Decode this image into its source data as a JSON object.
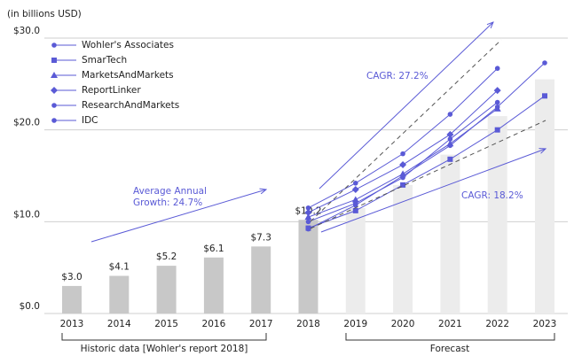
{
  "chart_data": {
    "type": "bar",
    "y_axis_label": "(in billions USD)",
    "categories": [
      "2013",
      "2014",
      "2015",
      "2016",
      "2017",
      "2018",
      "2019",
      "2020",
      "2021",
      "2022",
      "2023"
    ],
    "values": [
      3.0,
      4.1,
      5.2,
      6.1,
      7.3,
      10.2,
      11.5,
      14.0,
      17.3,
      21.5,
      25.5
    ],
    "value_labels": [
      "$3.0",
      "$4.1",
      "$5.2",
      "$6.1",
      "$7.3",
      "$10.2",
      null,
      null,
      null,
      null,
      null
    ],
    "bar_colors": [
      "#c8c8c8",
      "#c8c8c8",
      "#c8c8c8",
      "#c8c8c8",
      "#c8c8c8",
      "#c8c8c8",
      "#ececec",
      "#ececec",
      "#ececec",
      "#ececec",
      "#ececec"
    ],
    "ylim": [
      0,
      30
    ],
    "yticks": [
      {
        "value": 0,
        "label": "$0.0"
      },
      {
        "value": 10,
        "label": "$10.0"
      },
      {
        "value": 20,
        "label": "$20.0"
      },
      {
        "value": 30,
        "label": "$30.0"
      }
    ],
    "grid": true,
    "line_color": "#5a5ad6",
    "series": [
      {
        "name": "Wohler's Associates",
        "marker": "circle",
        "values": [
          null,
          null,
          null,
          null,
          null,
          11.5,
          14.2,
          17.4,
          21.7,
          26.7,
          null
        ]
      },
      {
        "name": "SmarTech",
        "marker": "square",
        "values": [
          null,
          null,
          null,
          null,
          null,
          9.3,
          11.2,
          14.0,
          16.8,
          20.0,
          23.7
        ]
      },
      {
        "name": "MarketsAndMarkets",
        "marker": "triangle",
        "values": [
          null,
          null,
          null,
          null,
          null,
          10.5,
          12.4,
          15.2,
          18.5,
          22.3,
          null
        ]
      },
      {
        "name": "ReportLinker",
        "marker": "diamond",
        "values": [
          null,
          null,
          null,
          null,
          null,
          11.0,
          13.5,
          16.2,
          19.5,
          24.3,
          null
        ]
      },
      {
        "name": "ResearchAndMarkets",
        "marker": "circle",
        "values": [
          null,
          null,
          null,
          null,
          null,
          10.0,
          12.0,
          14.8,
          19.0,
          23.0,
          null
        ]
      },
      {
        "name": "IDC",
        "marker": "circle",
        "values": [
          null,
          null,
          null,
          null,
          null,
          9.2,
          11.8,
          15.0,
          18.3,
          22.5,
          27.3
        ]
      }
    ],
    "annotations": {
      "average_growth": [
        "Average Annual",
        "Growth: 24.7%"
      ],
      "cagr_high": "CAGR: 27.2%",
      "cagr_low": "CAGR: 18.2%"
    },
    "periods": {
      "historic": "Historic data [Wohler's report 2018]",
      "forecast": "Forecast"
    }
  }
}
